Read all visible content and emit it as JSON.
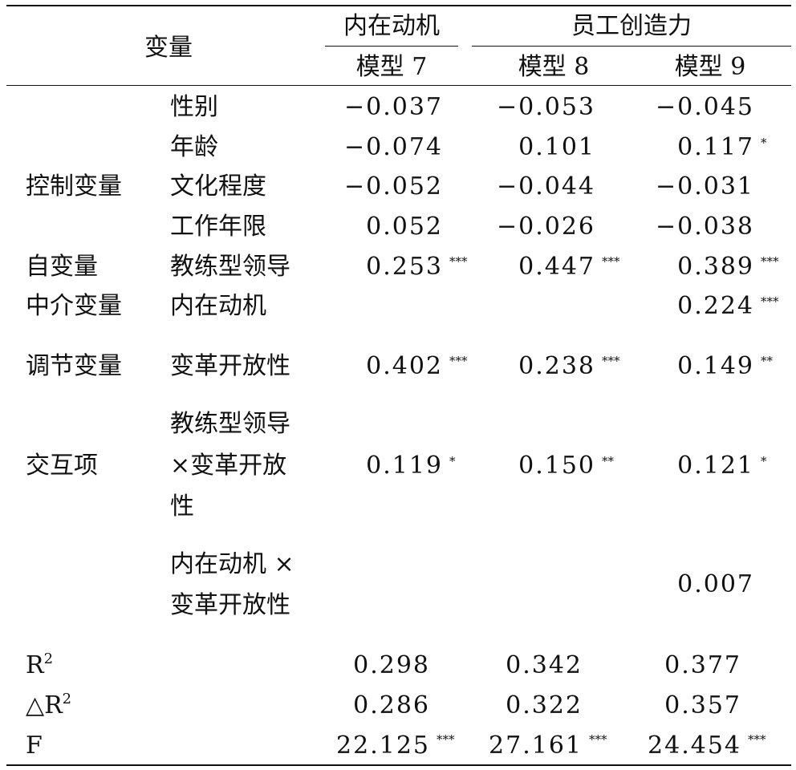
{
  "header": {
    "variable": "变量",
    "group_left": "内在动机",
    "group_right": "员工创造力",
    "model7": "模型 7",
    "model8": "模型 8",
    "model9": "模型 9"
  },
  "categories": {
    "control": "控制变量",
    "independent": "自变量",
    "mediator": "中介变量",
    "moderator": "调节变量",
    "interaction": "交互项"
  },
  "rows": [
    {
      "var": "性别",
      "m7": "−0.037",
      "s7": "",
      "m8": "−0.053",
      "s8": "",
      "m9": "−0.045",
      "s9": ""
    },
    {
      "var": "年龄",
      "m7": "−0.074",
      "s7": "",
      "m8": "0.101",
      "s8": "",
      "m9": "0.117",
      "s9": "*"
    },
    {
      "var": "文化程度",
      "m7": "−0.052",
      "s7": "",
      "m8": "−0.044",
      "s8": "",
      "m9": "−0.031",
      "s9": ""
    },
    {
      "var": "工作年限",
      "m7": "0.052",
      "s7": "",
      "m8": "−0.026",
      "s8": "",
      "m9": "−0.038",
      "s9": ""
    },
    {
      "var": "教练型领导",
      "m7": "0.253",
      "s7": "***",
      "m8": "0.447",
      "s8": "***",
      "m9": "0.389",
      "s9": "***"
    },
    {
      "var": "内在动机",
      "m9": "0.224",
      "s9": "***"
    },
    {
      "var": "变革开放性",
      "m7": "0.402",
      "s7": "***",
      "m8": "0.238",
      "s8": "***",
      "m9": "0.149",
      "s9": "**"
    },
    {
      "var_lines": [
        "教练型领导",
        "×变革开放",
        "性"
      ],
      "m7": "0.119",
      "s7": "*",
      "m8": "0.150",
      "s8": "**",
      "m9": "0.121",
      "s9": "*"
    },
    {
      "var_lines": [
        "内在动机 ×",
        "变革开放性"
      ],
      "m9": "0.007"
    }
  ],
  "stats": {
    "r2": {
      "label": "R",
      "sup": "2",
      "m7": "0.298",
      "m8": "0.342",
      "m9": "0.377"
    },
    "dr2": {
      "label": "△R",
      "sup": "2",
      "m7": "0.286",
      "m8": "0.322",
      "m9": "0.357"
    },
    "f": {
      "label": "F",
      "m7": "22.125",
      "s7": "***",
      "m8": "27.161",
      "s8": "***",
      "m9": "24.454",
      "s9": "***"
    }
  }
}
